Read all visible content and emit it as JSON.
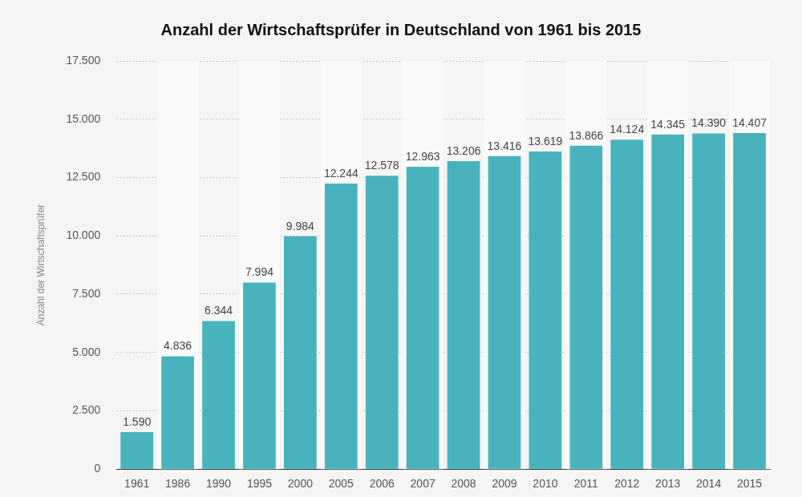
{
  "chart_data": {
    "type": "bar",
    "title": "Anzahl der Wirtschaftsprüfer in Deutschland von 1961 bis 2015",
    "y_label": "Anzahl der Wirtschaftsprüfer",
    "categories": [
      "1961",
      "1986",
      "1990",
      "1995",
      "2000",
      "2005",
      "2006",
      "2007",
      "2008",
      "2009",
      "2010",
      "2011",
      "2012",
      "2013",
      "2014",
      "2015"
    ],
    "values": [
      1590,
      4836,
      6344,
      7994,
      9984,
      12244,
      12578,
      12963,
      13206,
      13416,
      13619,
      13866,
      14124,
      14345,
      14390,
      14407
    ],
    "value_labels": [
      "1.590",
      "4.836",
      "6.344",
      "7.994",
      "9.984",
      "12.244",
      "12.578",
      "12.963",
      "13.206",
      "13.416",
      "13.619",
      "13.866",
      "14.124",
      "14.345",
      "14.390",
      "14.407"
    ],
    "color": "#48b3bd",
    "ylim": [
      0,
      17500
    ],
    "yticks": [
      0,
      {
        "value": 2500,
        "label": "2.500"
      },
      {
        "value": 5000,
        "label": "5.000"
      },
      {
        "value": 7500,
        "label": "7.500"
      },
      {
        "value": 10000,
        "label": "10.000"
      },
      {
        "value": 12500,
        "label": "12.500"
      },
      {
        "value": 15000,
        "label": "15.000"
      },
      {
        "value": 17500,
        "label": "17.500"
      }
    ],
    "grid": true,
    "data_labels": true
  }
}
